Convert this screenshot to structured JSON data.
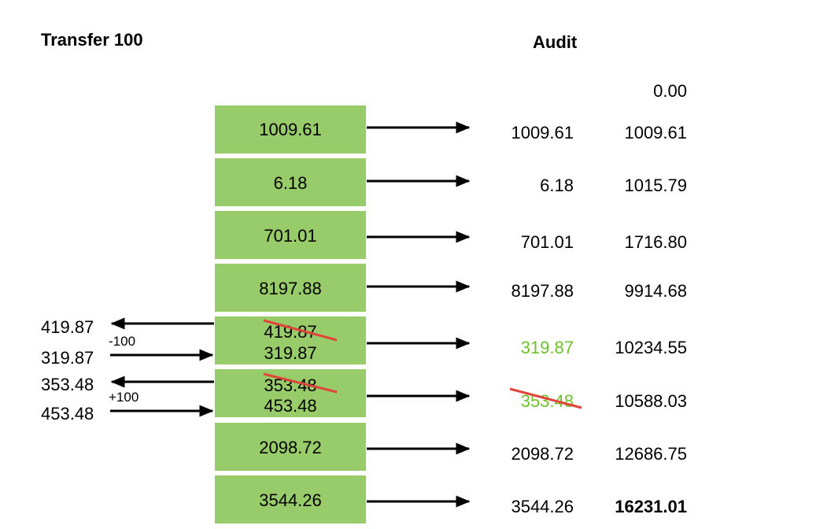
{
  "left_title": "Transfer 100",
  "audit_title": "Audit",
  "audit_initial": "0.00",
  "records": [
    {
      "cell": "1009.61",
      "audit": "1009.61",
      "running": "1009.61"
    },
    {
      "cell": "6.18",
      "audit": "6.18",
      "running": "1015.79"
    },
    {
      "cell": "701.01",
      "audit": "701.01",
      "running": "1716.80"
    },
    {
      "cell": "8197.88",
      "audit": "8197.88",
      "running": "9914.68"
    },
    {
      "cell_old": "419.87",
      "cell": "319.87",
      "audit": "319.87",
      "running": "10234.55"
    },
    {
      "cell_old": "353.48",
      "cell": "453.48",
      "audit": "353.48",
      "running": "10588.03"
    },
    {
      "cell": "2098.72",
      "audit": "2098.72",
      "running": "12686.75"
    },
    {
      "cell": "3544.26",
      "audit": "3544.26",
      "running": "16231.01"
    }
  ],
  "transfers": [
    {
      "out": "419.87",
      "delta": "-100",
      "in": "319.87"
    },
    {
      "out": "353.48",
      "delta": "+100",
      "in": "453.48"
    }
  ],
  "colors": {
    "cell": "#98cc6a",
    "changed_text": "#6dc12b",
    "strike": "#e0443a"
  }
}
